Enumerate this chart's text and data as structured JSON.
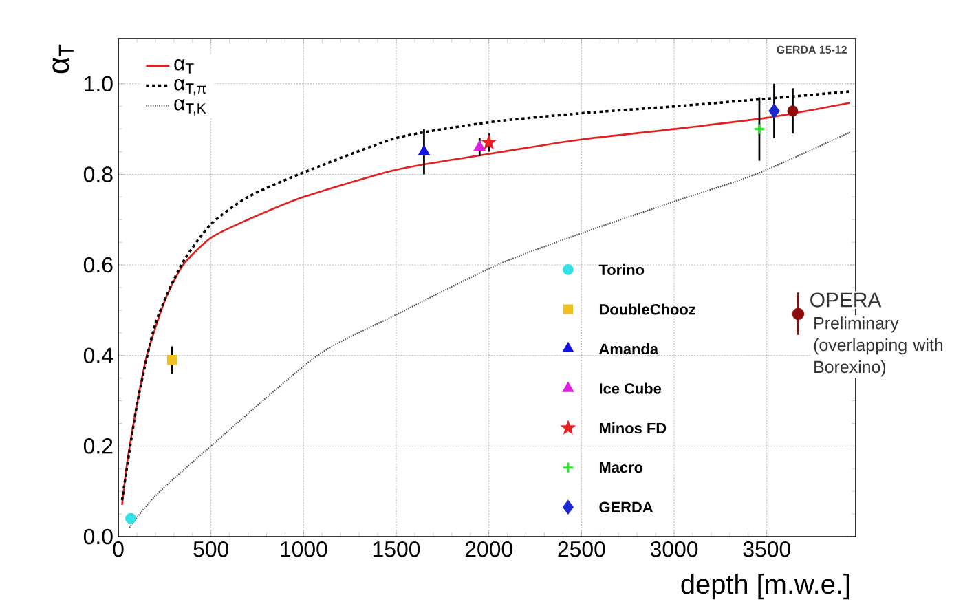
{
  "chart_data": {
    "type": "line",
    "xlabel": "depth [m.w.e.]",
    "ylabel": "α$_{T}$",
    "xlim": [
      0,
      3980
    ],
    "ylim": [
      0,
      1.1
    ],
    "xticks": [
      0,
      500,
      1000,
      1500,
      2000,
      2500,
      3000,
      3500
    ],
    "yticks": [
      {
        "value": 0,
        "label": "0.0"
      },
      {
        "value": 0.2,
        "label": "0.2"
      },
      {
        "value": 0.4,
        "label": "0.4"
      },
      {
        "value": 0.6,
        "label": "0.6"
      },
      {
        "value": 0.8,
        "label": "0.8"
      },
      {
        "value": 1.0,
        "label": "1.0"
      }
    ],
    "grid": true,
    "legend": "top left",
    "annotations": [
      "GERDA 15-12",
      "Preliminary (overlapping with Borexino)"
    ],
    "series": [
      {
        "name": "α$_{T}$",
        "color": "#e32020",
        "line_style": "solid",
        "x": [
          20,
          50,
          100,
          154,
          250,
          350,
          500,
          700,
          1000,
          1500,
          2000,
          2500,
          3000,
          3500,
          3950
        ],
        "values": [
          0.07,
          0.17,
          0.29,
          0.4,
          0.52,
          0.6,
          0.66,
          0.7,
          0.75,
          0.81,
          0.845,
          0.877,
          0.9,
          0.925,
          0.958
        ]
      },
      {
        "name": "α$_{T,π}$",
        "color": "#000000",
        "line_style": "dashed",
        "x": [
          20,
          100,
          200,
          340,
          500,
          700,
          975,
          1500,
          2000,
          2500,
          3000,
          3500,
          3950
        ],
        "values": [
          0.08,
          0.29,
          0.47,
          0.6,
          0.69,
          0.75,
          0.8,
          0.88,
          0.915,
          0.935,
          0.95,
          0.967,
          0.983
        ]
      },
      {
        "name": "α$_{T,K}$",
        "color": "#555555",
        "line_style": "dotted",
        "x": [
          60,
          200,
          500,
          1075,
          1500,
          2045,
          2500,
          3000,
          3440,
          3950
        ],
        "values": [
          0.02,
          0.09,
          0.2,
          0.4,
          0.49,
          0.6,
          0.67,
          0.74,
          0.8,
          0.893
        ]
      },
      {
        "name": "Torino",
        "type": "scatter",
        "marker": "circle",
        "color": "#33e0e6",
        "x": [
          67
        ],
        "values": [
          0.04
        ]
      },
      {
        "name": "DoubleChooz",
        "type": "scatter",
        "marker": "square",
        "color": "#f0c020",
        "x": [
          290
        ],
        "values": [
          0.39
        ],
        "errors": [
          0.03
        ]
      },
      {
        "name": "Amanda",
        "type": "scatter",
        "marker": "triangle",
        "color": "#1414e0",
        "x": [
          1650
        ],
        "values": [
          0.85
        ],
        "errors": [
          0.05
        ]
      },
      {
        "name": "Ice Cube",
        "type": "scatter",
        "marker": "triangle_down",
        "color": "#e020e0",
        "x": [
          1950
        ],
        "values": [
          0.86
        ],
        "errors": [
          0.02
        ]
      },
      {
        "name": "Minos FD",
        "type": "scatter",
        "marker": "star",
        "color": "#e82020",
        "x": [
          2000
        ],
        "values": [
          0.87
        ],
        "errors": [
          0.02
        ]
      },
      {
        "name": "Macro",
        "type": "scatter",
        "marker": "cross",
        "color": "#30e030",
        "x": [
          3460
        ],
        "values": [
          0.9
        ],
        "errors": [
          0.07
        ]
      },
      {
        "name": "GERDA",
        "type": "scatter",
        "marker": "diamond",
        "color": "#1a2ad0",
        "x": [
          3540
        ],
        "values": [
          0.94
        ],
        "errors": [
          0.06
        ]
      },
      {
        "name": "OPERA",
        "type": "scatter",
        "marker": "circle",
        "color": "#8b0a0a",
        "x": [
          3640
        ],
        "values": [
          0.94
        ],
        "errors": [
          0.05
        ]
      }
    ]
  }
}
